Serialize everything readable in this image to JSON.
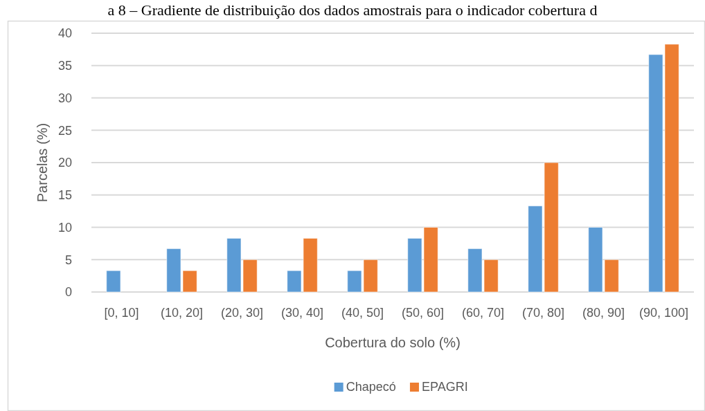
{
  "chart_data": {
    "type": "bar",
    "title": "a 8 – Gradiente de distribuição dos dados amostrais para o indicador cobertura d",
    "xlabel": "Cobertura do solo (%)",
    "ylabel": "Parcelas (%)",
    "categories": [
      "[0, 10]",
      "(10, 20]",
      "(20, 30]",
      "(30, 40]",
      "(40, 50]",
      "(50, 60]",
      "(60, 70]",
      "(70, 80]",
      "(80, 90]",
      "(90, 100]"
    ],
    "series": [
      {
        "name": "Chapecó",
        "color": "#5b9bd5",
        "values": [
          3.3,
          6.7,
          8.3,
          3.3,
          3.3,
          8.3,
          6.7,
          13.3,
          10,
          36.7
        ]
      },
      {
        "name": "EPAGRI",
        "color": "#ed7d31",
        "values": [
          0,
          3.3,
          5,
          8.3,
          5,
          10,
          5,
          20,
          5,
          38.3
        ]
      }
    ],
    "ylim": [
      0,
      40
    ],
    "yticks": [
      0,
      5,
      10,
      15,
      20,
      25,
      30,
      35,
      40
    ],
    "grid": "y",
    "legend": "bottom"
  }
}
